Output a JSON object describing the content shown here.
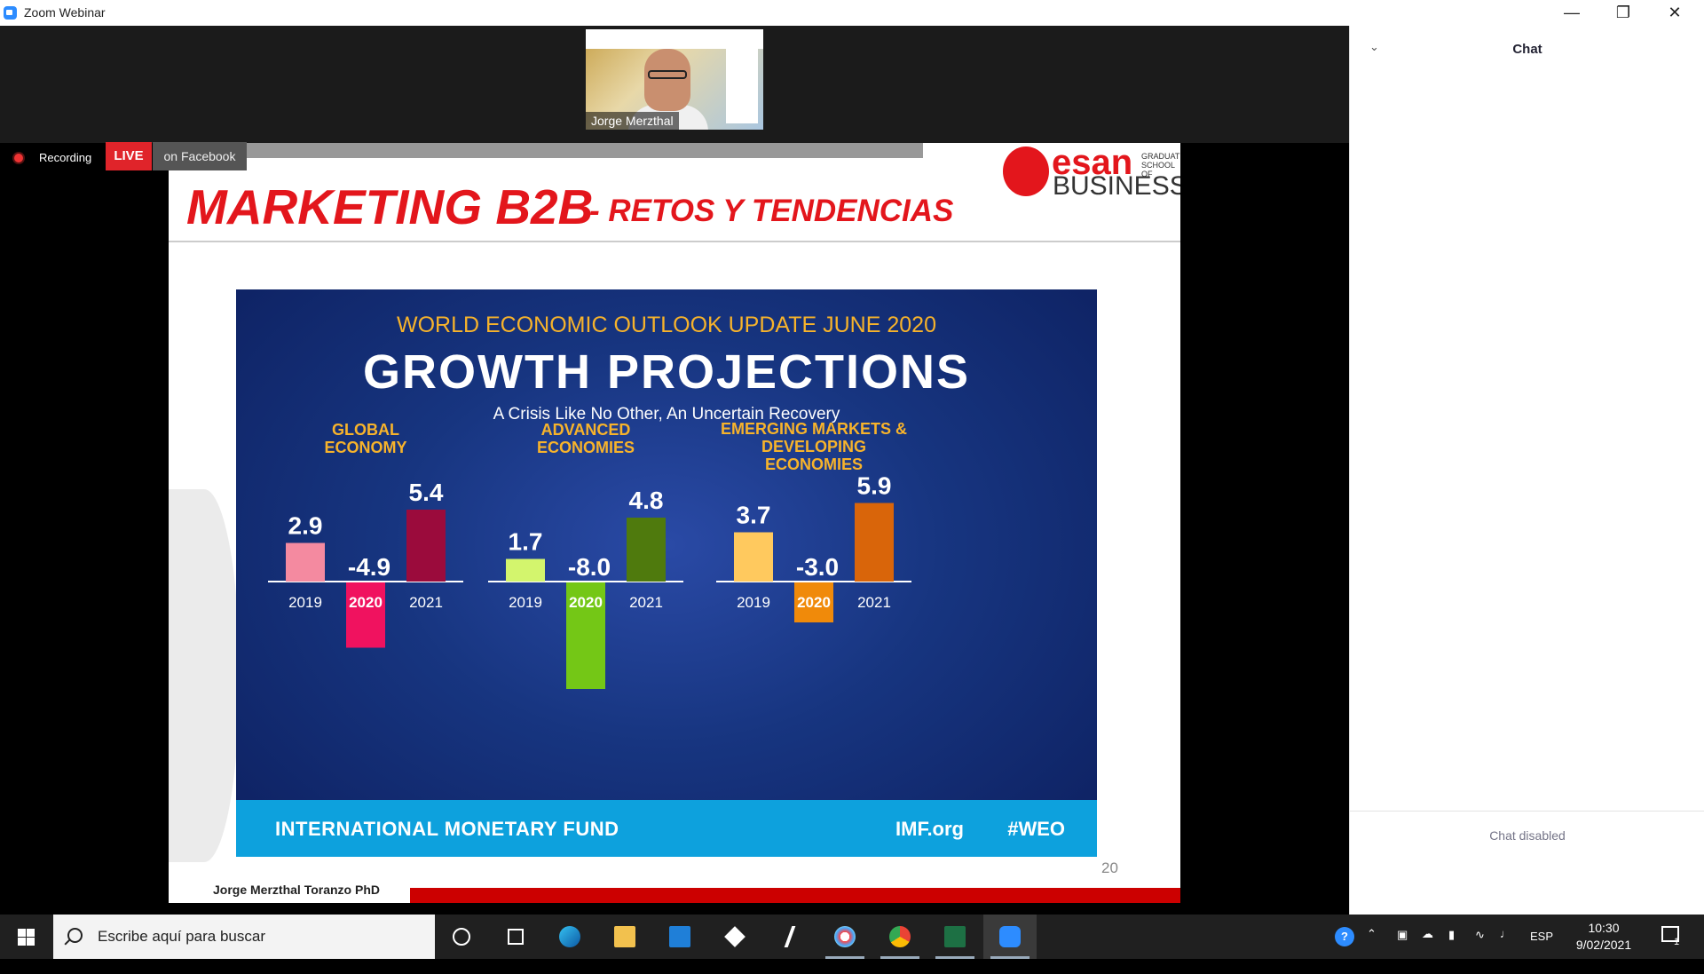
{
  "window": {
    "title": "Zoom Webinar"
  },
  "video_thumbnail": {
    "participant_name": "Jorge Merzthal"
  },
  "status": {
    "recording_label": "Recording",
    "live_badge": "LIVE",
    "stream_target": "on Facebook"
  },
  "slide": {
    "title_main": "MARKETING B2B",
    "title_sub": "- RETOS Y TENDENCIAS",
    "logo": {
      "name": "esan",
      "tagline": "GRADUATE SCHOOL OF",
      "sub": "BUSINESS"
    },
    "page_number": "20",
    "author": "Jorge Merzthal Toranzo PhD",
    "infographic": {
      "supertitle": "WORLD ECONOMIC OUTLOOK UPDATE JUNE 2020",
      "title": "GROWTH PROJECTIONS",
      "subtitle": "A Crisis Like No Other, An Uncertain Recovery",
      "footer_org": "INTERNATIONAL MONETARY FUND",
      "footer_url": "IMF.org",
      "footer_tag": "#WEO"
    }
  },
  "chart_data": {
    "type": "bar",
    "categories": [
      "2019",
      "2020",
      "2021"
    ],
    "groups": [
      {
        "title": "GLOBAL\nECONOMY",
        "values": [
          2.9,
          -4.9,
          5.4
        ],
        "value_labels": [
          "2.9",
          "-4.9",
          "5.4"
        ],
        "colors": [
          "#f48aa0",
          "#f0125f",
          "#9b0b3c"
        ]
      },
      {
        "title": "ADVANCED\nECONOMIES",
        "values": [
          1.7,
          -8.0,
          4.8
        ],
        "value_labels": [
          "1.7",
          "-8.0",
          "4.8"
        ],
        "colors": [
          "#d3f56d",
          "#74c716",
          "#4f7a0d"
        ]
      },
      {
        "title": "EMERGING MARKETS &\nDEVELOPING ECONOMIES",
        "values": [
          3.7,
          -3.0,
          5.9
        ],
        "value_labels": [
          "3.7",
          "-3.0",
          "5.9"
        ],
        "colors": [
          "#ffc95e",
          "#f08a0a",
          "#d9650a"
        ]
      }
    ],
    "highlight_category": "2020",
    "colors": {
      "axis": "#ffffff",
      "text": "#ffffff"
    }
  },
  "chat": {
    "title": "Chat",
    "disabled_text": "Chat disabled"
  },
  "taskbar": {
    "search_placeholder": "Escribe aquí para buscar",
    "apps": [
      "cortana-icon",
      "task-view-icon",
      "edge-icon",
      "file-explorer-icon",
      "mail-icon",
      "dropbox-icon",
      "winamp-icon",
      "paint-icon",
      "chrome-icon",
      "excel-icon",
      "zoom-icon"
    ],
    "language": "ESP",
    "time": "10:30",
    "date": "9/02/2021",
    "notification_count": "1"
  }
}
